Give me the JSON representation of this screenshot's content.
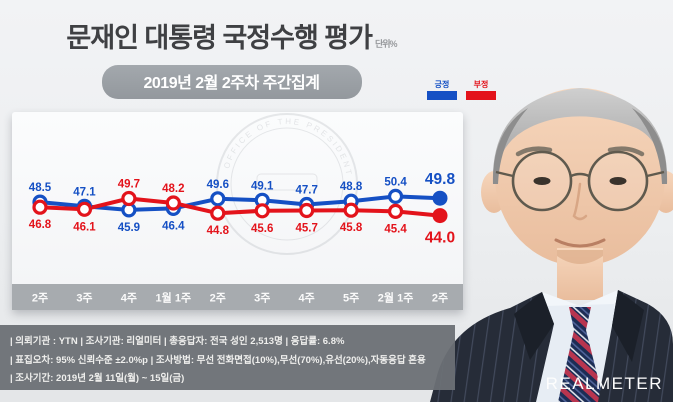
{
  "header": {
    "title": "문재인 대통령 국정수행 평가",
    "unit": "단위%",
    "subtitle": "2019년 2월 2주차 주간집계"
  },
  "legend": {
    "positive_label": "긍정",
    "negative_label": "부정"
  },
  "colors": {
    "positive": "#1550c4",
    "negative": "#e3131b",
    "axis_band": "#a7abaf",
    "band_text": "#ffffff"
  },
  "watermark": "OFFICE OF THE PRESIDENT",
  "chart_data": {
    "type": "line",
    "title": "문재인 대통령 국정수행 평가",
    "categories": [
      "2주",
      "3주",
      "4주",
      "1월 1주",
      "2주",
      "3주",
      "4주",
      "5주",
      "2월 1주",
      "2주"
    ],
    "series": [
      {
        "name": "긍정",
        "color": "#1550c4",
        "values": [
          48.5,
          47.1,
          45.9,
          46.4,
          49.6,
          49.1,
          47.7,
          48.8,
          50.4,
          49.8
        ]
      },
      {
        "name": "부정",
        "color": "#e3131b",
        "values": [
          46.8,
          46.1,
          49.7,
          48.2,
          44.8,
          45.6,
          45.7,
          45.8,
          45.4,
          44.0
        ]
      }
    ],
    "ylim": [
      42,
      52
    ],
    "highlight_last_point": true,
    "legend_position": "top-right",
    "grid": false
  },
  "footnotes": [
    "| 의뢰기관 : YTN  |  조사기관: 리얼미터 |  총응답자: 전국 성인 2,513명  |  응답률: 6.8%",
    "| 표집오차: 95% 신뢰수준 ±2.0%p |  조사방법: 무선 전화면접(10%),무선(70%),유선(20%),자동응답 혼용",
    "| 조사기간: 2019년 2월 11일(월) ~ 15일(금)"
  ],
  "logo_text": "REALMETER"
}
